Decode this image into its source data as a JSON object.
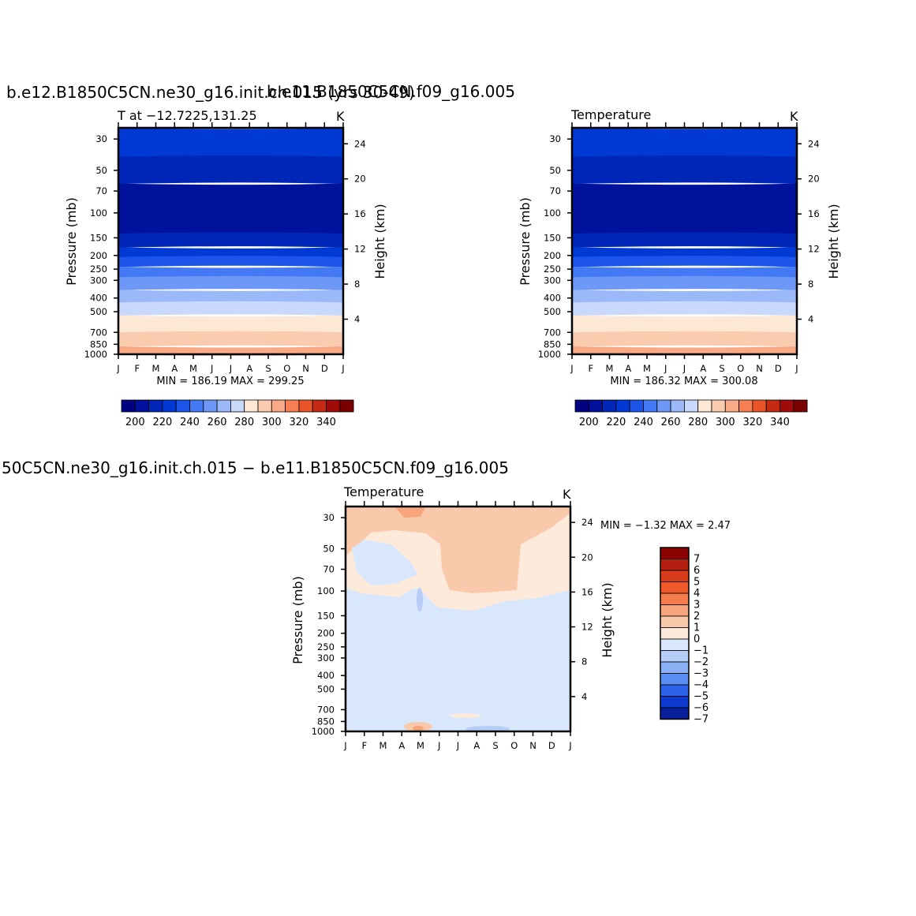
{
  "chart_data": [
    {
      "type": "heatmap",
      "header_title": "b.e12.B1850C5CN.ne30_g16.init.ch.015 (yrs 30-49)",
      "header_title_overlap": "b.e11.B1850C5CN.f09_g16.005",
      "left_label": "T  at  −12.7225,131.25",
      "units": "K",
      "xlabel": "",
      "ylabel": "Pressure  (mb)",
      "ylabel_right": "Height  (km)",
      "x_ticks": [
        "J",
        "F",
        "M",
        "A",
        "M",
        "J",
        "J",
        "A",
        "S",
        "O",
        "N",
        "D",
        "J"
      ],
      "y_ticks": [
        "30",
        "50",
        "70",
        "100",
        "150",
        "200",
        "250",
        "300",
        "400",
        "500",
        "700",
        "850",
        "1000"
      ],
      "y_ticks_right": [
        "24",
        "20",
        "16",
        "12",
        "8",
        "4"
      ],
      "ylim_mb": [
        1000,
        25
      ],
      "min_max_label": "MIN = 186.19  MAX = 299.25",
      "bands_K_top_to_bottom": [
        215,
        205,
        195,
        205,
        215,
        225,
        235,
        245,
        255,
        265,
        275,
        285,
        295
      ],
      "colorbar": {
        "labels": [
          "200",
          "220",
          "240",
          "260",
          "280",
          "300",
          "320",
          "340"
        ],
        "levels": [
          190,
          200,
          210,
          220,
          230,
          240,
          250,
          260,
          270,
          280,
          290,
          300,
          310,
          320,
          330,
          340
        ]
      }
    },
    {
      "type": "heatmap",
      "left_label": "Temperature",
      "units": "K",
      "ylabel": "Pressure  (mb)",
      "ylabel_right": "Height  (km)",
      "x_ticks": [
        "J",
        "F",
        "M",
        "A",
        "M",
        "J",
        "J",
        "A",
        "S",
        "O",
        "N",
        "D",
        "J"
      ],
      "y_ticks": [
        "30",
        "50",
        "70",
        "100",
        "150",
        "200",
        "250",
        "300",
        "400",
        "500",
        "700",
        "850",
        "1000"
      ],
      "y_ticks_right": [
        "24",
        "20",
        "16",
        "12",
        "8",
        "4"
      ],
      "ylim_mb": [
        1000,
        25
      ],
      "min_max_label": "MIN = 186.32  MAX = 300.08",
      "bands_K_top_to_bottom": [
        215,
        205,
        195,
        205,
        215,
        225,
        235,
        245,
        255,
        265,
        275,
        285,
        295
      ],
      "colorbar": {
        "labels": [
          "200",
          "220",
          "240",
          "260",
          "280",
          "300",
          "320",
          "340"
        ],
        "levels": [
          190,
          200,
          210,
          220,
          230,
          240,
          250,
          260,
          270,
          280,
          290,
          300,
          310,
          320,
          330,
          340
        ]
      }
    },
    {
      "type": "heatmap",
      "header_title": "50C5CN.ne30_g16.init.ch.015  −  b.e11.B1850C5CN.f09_g16.005",
      "left_label": "Temperature",
      "units": "K",
      "ylabel": "Pressure  (mb)",
      "ylabel_right": "Height  (km)",
      "x_ticks": [
        "J",
        "F",
        "M",
        "A",
        "M",
        "J",
        "J",
        "A",
        "S",
        "O",
        "N",
        "D",
        "J"
      ],
      "y_ticks": [
        "30",
        "50",
        "70",
        "100",
        "150",
        "200",
        "250",
        "300",
        "400",
        "500",
        "700",
        "850",
        "1000"
      ],
      "y_ticks_right": [
        "24",
        "20",
        "16",
        "12",
        "8",
        "4"
      ],
      "ylim_mb": [
        1000,
        25
      ],
      "min_max_label": "MIN =   −1.32  MAX =     2.47",
      "colorbar": {
        "labels": [
          "7",
          "6",
          "5",
          "4",
          "3",
          "2",
          "1",
          "0",
          "−1",
          "−2",
          "−3",
          "−4",
          "−5",
          "−6",
          "−7"
        ]
      }
    }
  ],
  "colors": {
    "temperature_scale": [
      "#000080",
      "#00129b",
      "#0026b8",
      "#0039d3",
      "#1d55eb",
      "#4479f5",
      "#6d98f7",
      "#9bb9f9",
      "#c8d9fb",
      "#fde8d5",
      "#fbcbb0",
      "#f9a985",
      "#f77f53",
      "#e95429",
      "#c52a12",
      "#9f0b08",
      "#7a0000"
    ],
    "difference_scale": [
      "#8b0000",
      "#b42010",
      "#d83c19",
      "#f05a2a",
      "#f57d4d",
      "#f8a47c",
      "#fac9ab",
      "#fdeadb",
      "#d8e7fb",
      "#b6cdf8",
      "#8aaff5",
      "#5b8ef2",
      "#2c62e8",
      "#0d3bd1",
      "#0a1f9c"
    ]
  }
}
